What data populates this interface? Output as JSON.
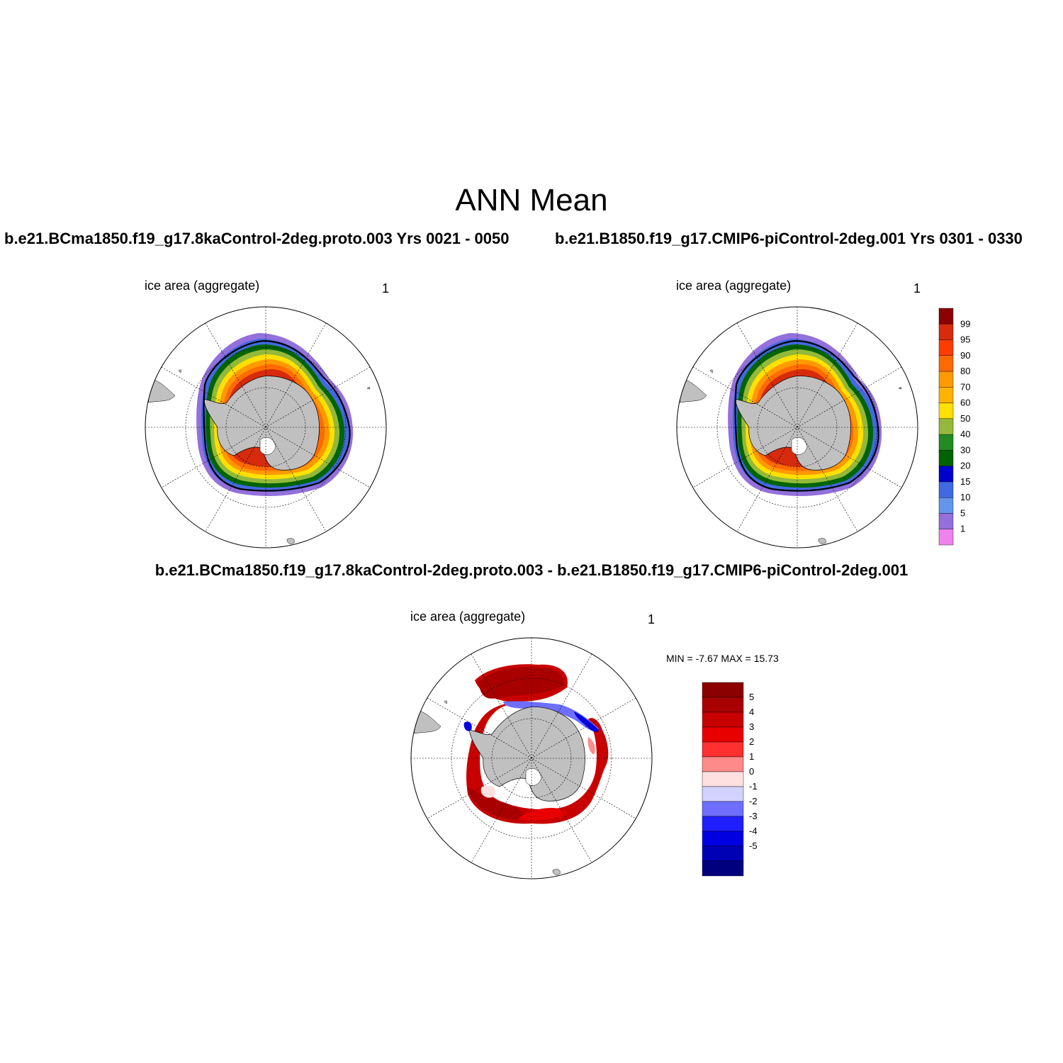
{
  "title": "ANN Mean",
  "panels": [
    {
      "id": "case1",
      "heading": "b.e21.BCma1850.f19_g17.8kaControl-2deg.proto.003  Yrs 0021 - 0050",
      "left_string": "ice area  (aggregate)",
      "right_string": "1"
    },
    {
      "id": "case2",
      "heading": "b.e21.B1850.f19_g17.CMIP6-piControl-2deg.001  Yrs 0301 - 0330",
      "left_string": "ice area  (aggregate)",
      "right_string": "1"
    },
    {
      "id": "diff",
      "heading": "b.e21.BCma1850.f19_g17.8kaControl-2deg.proto.003 - b.e21.B1850.f19_g17.CMIP6-piControl-2deg.001",
      "left_string": "ice area  (aggregate)",
      "right_string": "1",
      "min_max": "MIN =  -7.67 MAX =  15.73"
    }
  ],
  "colorbar_concentration": {
    "labels": [
      "99",
      "95",
      "90",
      "80",
      "70",
      "60",
      "50",
      "40",
      "30",
      "20",
      "15",
      "10",
      "5",
      "1"
    ],
    "colors": [
      "#8b0000",
      "#d62b0c",
      "#ff3c00",
      "#ff6a00",
      "#ff9900",
      "#ffb300",
      "#ffe000",
      "#94b93a",
      "#228b22",
      "#006400",
      "#0000cd",
      "#4169e1",
      "#6495ed",
      "#9370db",
      "#ee82ee"
    ]
  },
  "colorbar_difference": {
    "labels": [
      "5",
      "4",
      "3",
      "2",
      "1",
      "0",
      "-1",
      "-2",
      "-3",
      "-4",
      "-5"
    ],
    "colors": [
      "#8b0000",
      "#a80000",
      "#c80000",
      "#e80000",
      "#ff3030",
      "#ff8a8a",
      "#ffe0e0",
      "#d2d2ff",
      "#6e6eff",
      "#1e1eff",
      "#0000e0",
      "#0000b4",
      "#00007f"
    ]
  },
  "map_colors": {
    "land": "#c0c0c0",
    "ice_edge_contour": "#000000"
  }
}
